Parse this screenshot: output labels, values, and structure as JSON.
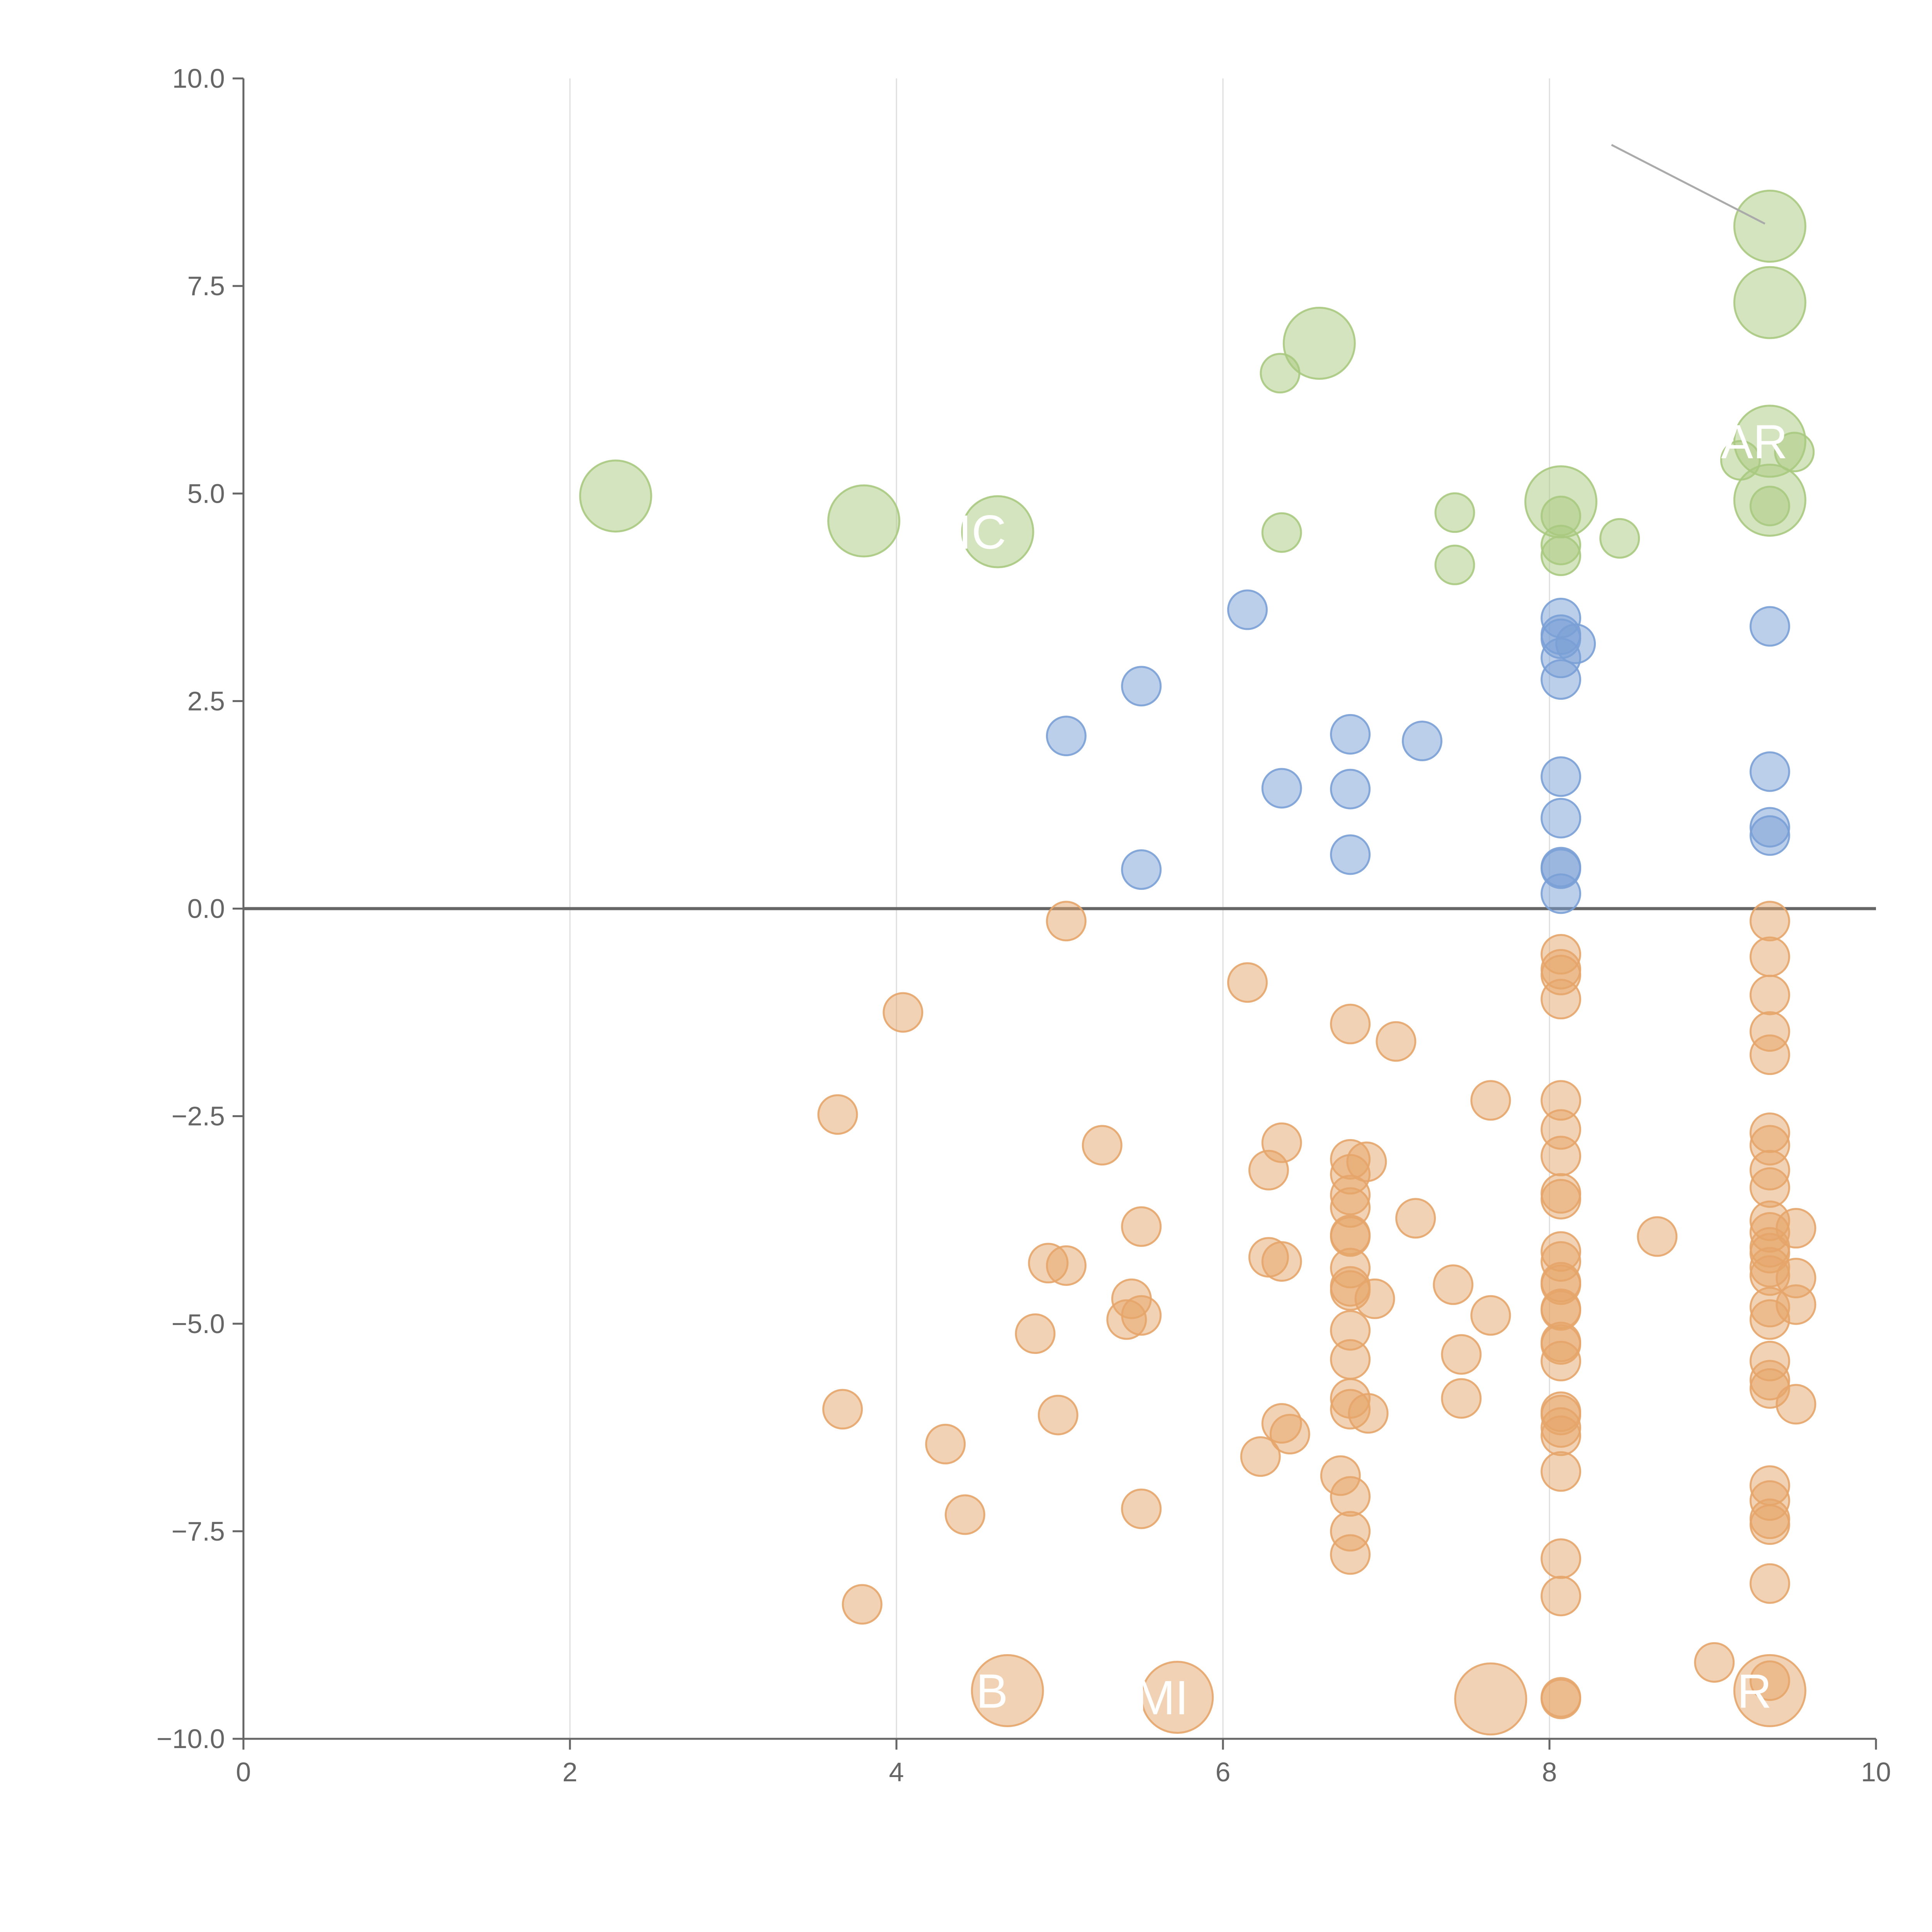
{
  "chart_data": {
    "type": "scatter",
    "title": "",
    "xlabel": "",
    "ylabel": "",
    "xlim": [
      0,
      10
    ],
    "ylim": [
      -10,
      10
    ],
    "x_ticks": [
      "0",
      "2",
      "4",
      "6",
      "8",
      "10"
    ],
    "y_ticks": [
      "−10.0",
      "−7.5",
      "−5.0",
      "−2.5",
      "0.0",
      "2.5",
      "5.0",
      "7.5",
      "10.0"
    ],
    "grid": "vertical",
    "zero_line": true,
    "colors": {
      "green": "#a9c97f",
      "blue": "#7aa0d6",
      "orange": "#e5a56a",
      "axis": "#666666",
      "grid": "#dddddd",
      "label_text": "#ffffff",
      "leader_line": "#aaaaaa"
    },
    "series": [
      {
        "color_key": "blue",
        "points": [
          {
            "x": 6.15,
            "y": 3.6
          },
          {
            "x": 5.5,
            "y": 2.68
          },
          {
            "x": 5.04,
            "y": 2.08
          },
          {
            "x": 5.5,
            "y": 0.47
          },
          {
            "x": 6.36,
            "y": 1.45
          },
          {
            "x": 6.78,
            "y": 2.1
          },
          {
            "x": 6.78,
            "y": 1.44
          },
          {
            "x": 6.78,
            "y": 0.65
          },
          {
            "x": 7.22,
            "y": 2.02
          },
          {
            "x": 8.07,
            "y": 3.5
          },
          {
            "x": 8.07,
            "y": 3.3
          },
          {
            "x": 8.07,
            "y": 3.25
          },
          {
            "x": 8.16,
            "y": 3.19
          },
          {
            "x": 8.07,
            "y": 3.02
          },
          {
            "x": 8.07,
            "y": 2.76
          },
          {
            "x": 8.07,
            "y": 1.59
          },
          {
            "x": 8.07,
            "y": 1.09
          },
          {
            "x": 8.07,
            "y": 0.5
          },
          {
            "x": 8.07,
            "y": 0.48
          },
          {
            "x": 8.07,
            "y": 0.18
          },
          {
            "x": 9.35,
            "y": 3.4
          },
          {
            "x": 9.35,
            "y": 1.65
          },
          {
            "x": 9.35,
            "y": 0.98
          },
          {
            "x": 9.35,
            "y": 0.88
          }
        ]
      },
      {
        "color_key": "green",
        "points": [
          {
            "x": 2.28,
            "y": 4.97,
            "size": "large"
          },
          {
            "x": 3.8,
            "y": 4.67,
            "size": "large"
          },
          {
            "x": 4.62,
            "y": 4.54,
            "size": "large"
          },
          {
            "x": 6.59,
            "y": 6.81,
            "size": "large"
          },
          {
            "x": 6.35,
            "y": 6.45
          },
          {
            "x": 6.36,
            "y": 4.53
          },
          {
            "x": 7.42,
            "y": 4.77
          },
          {
            "x": 7.42,
            "y": 4.14
          },
          {
            "x": 8.07,
            "y": 4.9,
            "size": "large"
          },
          {
            "x": 8.07,
            "y": 4.73
          },
          {
            "x": 8.07,
            "y": 4.38
          },
          {
            "x": 8.07,
            "y": 4.25
          },
          {
            "x": 8.43,
            "y": 4.46
          },
          {
            "x": 9.35,
            "y": 8.22,
            "size": "large"
          },
          {
            "x": 9.35,
            "y": 7.3,
            "size": "large"
          },
          {
            "x": 9.35,
            "y": 5.63,
            "size": "large"
          },
          {
            "x": 9.35,
            "y": 4.92,
            "size": "large"
          },
          {
            "x": 9.35,
            "y": 4.85
          },
          {
            "x": 9.17,
            "y": 5.4
          },
          {
            "x": 9.5,
            "y": 5.5
          }
        ]
      },
      {
        "color_key": "orange",
        "points": [
          {
            "x": 5.04,
            "y": -0.15
          },
          {
            "x": 4.04,
            "y": -1.25
          },
          {
            "x": 3.64,
            "y": -2.48
          },
          {
            "x": 5.26,
            "y": -2.85
          },
          {
            "x": 5.5,
            "y": -3.83
          },
          {
            "x": 4.93,
            "y": -4.27
          },
          {
            "x": 5.04,
            "y": -4.3
          },
          {
            "x": 5.44,
            "y": -4.7
          },
          {
            "x": 5.41,
            "y": -4.95
          },
          {
            "x": 5.5,
            "y": -4.9
          },
          {
            "x": 4.85,
            "y": -5.12
          },
          {
            "x": 3.67,
            "y": -6.03
          },
          {
            "x": 4.99,
            "y": -6.1
          },
          {
            "x": 4.3,
            "y": -6.45
          },
          {
            "x": 4.42,
            "y": -7.3
          },
          {
            "x": 5.5,
            "y": -7.23
          },
          {
            "x": 3.79,
            "y": -8.38
          },
          {
            "x": 6.15,
            "y": -0.89
          },
          {
            "x": 6.36,
            "y": -2.82
          },
          {
            "x": 6.28,
            "y": -3.15
          },
          {
            "x": 6.28,
            "y": -4.2
          },
          {
            "x": 6.36,
            "y": -4.25
          },
          {
            "x": 6.36,
            "y": -6.2
          },
          {
            "x": 6.41,
            "y": -6.33
          },
          {
            "x": 6.23,
            "y": -6.6
          },
          {
            "x": 6.78,
            "y": -1.39
          },
          {
            "x": 7.06,
            "y": -1.6
          },
          {
            "x": 6.78,
            "y": -3.02
          },
          {
            "x": 6.88,
            "y": -3.05
          },
          {
            "x": 6.78,
            "y": -3.2
          },
          {
            "x": 6.78,
            "y": -3.45
          },
          {
            "x": 6.78,
            "y": -3.6
          },
          {
            "x": 6.78,
            "y": -3.93
          },
          {
            "x": 6.78,
            "y": -3.95
          },
          {
            "x": 7.18,
            "y": -3.73
          },
          {
            "x": 6.78,
            "y": -4.33
          },
          {
            "x": 6.78,
            "y": -4.55
          },
          {
            "x": 6.78,
            "y": -4.6
          },
          {
            "x": 6.93,
            "y": -4.7
          },
          {
            "x": 6.78,
            "y": -5.08
          },
          {
            "x": 6.78,
            "y": -5.43
          },
          {
            "x": 6.78,
            "y": -5.9
          },
          {
            "x": 6.78,
            "y": -6.03
          },
          {
            "x": 6.89,
            "y": -6.08
          },
          {
            "x": 6.72,
            "y": -6.83
          },
          {
            "x": 6.78,
            "y": -7.08
          },
          {
            "x": 6.78,
            "y": -7.5
          },
          {
            "x": 6.78,
            "y": -7.78
          },
          {
            "x": 7.64,
            "y": -2.31
          },
          {
            "x": 7.41,
            "y": -4.53
          },
          {
            "x": 7.64,
            "y": -4.9
          },
          {
            "x": 7.46,
            "y": -5.37
          },
          {
            "x": 7.46,
            "y": -5.9
          },
          {
            "x": 8.07,
            "y": -0.55
          },
          {
            "x": 8.07,
            "y": -0.73
          },
          {
            "x": 8.07,
            "y": -0.8
          },
          {
            "x": 8.07,
            "y": -1.09
          },
          {
            "x": 8.07,
            "y": -2.31
          },
          {
            "x": 8.07,
            "y": -2.66
          },
          {
            "x": 8.07,
            "y": -2.98
          },
          {
            "x": 8.07,
            "y": -3.43
          },
          {
            "x": 8.07,
            "y": -3.5
          },
          {
            "x": 8.07,
            "y": -4.13
          },
          {
            "x": 8.07,
            "y": -4.25
          },
          {
            "x": 8.07,
            "y": -4.5
          },
          {
            "x": 8.07,
            "y": -4.53
          },
          {
            "x": 8.07,
            "y": -4.82
          },
          {
            "x": 8.07,
            "y": -4.84
          },
          {
            "x": 8.07,
            "y": -5.22
          },
          {
            "x": 8.07,
            "y": -5.25
          },
          {
            "x": 8.07,
            "y": -5.45
          },
          {
            "x": 8.07,
            "y": -6.06
          },
          {
            "x": 8.07,
            "y": -6.1
          },
          {
            "x": 8.07,
            "y": -6.25
          },
          {
            "x": 8.07,
            "y": -6.35
          },
          {
            "x": 8.07,
            "y": -6.78
          },
          {
            "x": 8.07,
            "y": -7.83
          },
          {
            "x": 8.07,
            "y": -8.28
          },
          {
            "x": 8.07,
            "y": -9.5
          },
          {
            "x": 8.07,
            "y": -9.52
          },
          {
            "x": 8.66,
            "y": -3.95
          },
          {
            "x": 9.01,
            "y": -9.08
          },
          {
            "x": 9.35,
            "y": -0.15
          },
          {
            "x": 9.35,
            "y": -0.58
          },
          {
            "x": 9.35,
            "y": -1.04
          },
          {
            "x": 9.35,
            "y": -1.48
          },
          {
            "x": 9.35,
            "y": -1.76
          },
          {
            "x": 9.35,
            "y": -2.7
          },
          {
            "x": 9.35,
            "y": -2.85
          },
          {
            "x": 9.35,
            "y": -3.15
          },
          {
            "x": 9.35,
            "y": -3.36
          },
          {
            "x": 9.35,
            "y": -3.76
          },
          {
            "x": 9.35,
            "y": -3.9
          },
          {
            "x": 9.35,
            "y": -4.08
          },
          {
            "x": 9.35,
            "y": -4.15
          },
          {
            "x": 9.35,
            "y": -4.42
          },
          {
            "x": 9.35,
            "y": -4.32
          },
          {
            "x": 9.35,
            "y": -4.8
          },
          {
            "x": 9.35,
            "y": -4.95
          },
          {
            "x": 9.51,
            "y": -3.85
          },
          {
            "x": 9.51,
            "y": -4.45
          },
          {
            "x": 9.51,
            "y": -4.77
          },
          {
            "x": 9.35,
            "y": -5.45
          },
          {
            "x": 9.35,
            "y": -5.68
          },
          {
            "x": 9.35,
            "y": -5.78
          },
          {
            "x": 9.51,
            "y": -5.97
          },
          {
            "x": 9.35,
            "y": -6.95
          },
          {
            "x": 9.35,
            "y": -7.13
          },
          {
            "x": 9.35,
            "y": -7.35
          },
          {
            "x": 9.35,
            "y": -7.42
          },
          {
            "x": 9.35,
            "y": -8.13
          },
          {
            "x": 9.35,
            "y": -9.3
          },
          {
            "x": 4.68,
            "y": -9.42,
            "size": "large"
          },
          {
            "x": 5.72,
            "y": -9.5,
            "size": "large"
          },
          {
            "x": 7.64,
            "y": -9.52,
            "size": "large"
          },
          {
            "x": 9.35,
            "y": -9.42,
            "size": "large"
          }
        ]
      }
    ],
    "annotations": [
      {
        "text": "AR",
        "x": 9.35,
        "y": 5.63
      },
      {
        "text": "IC",
        "x": 4.62,
        "y": 4.54
      },
      {
        "text": "B",
        "x": 4.68,
        "y": -9.42
      },
      {
        "text": "MI",
        "x": 5.72,
        "y": -9.5
      },
      {
        "text": "R",
        "x": 9.35,
        "y": -9.42
      }
    ]
  }
}
